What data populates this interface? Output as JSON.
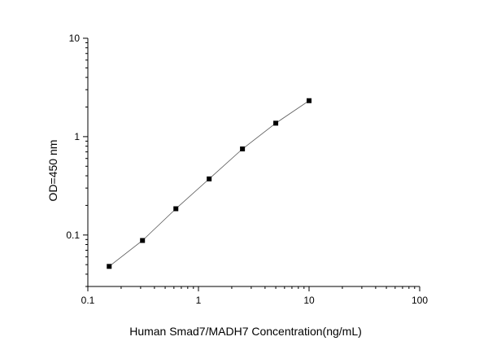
{
  "chart_data": {
    "type": "scatter",
    "title": "",
    "xlabel": "Human Smad7/MADH7 Concentration(ng/mL)",
    "ylabel": "OD=450 nm",
    "xscale": "log",
    "yscale": "log",
    "xlim": [
      0.1,
      100
    ],
    "ylim": [
      0.03,
      10
    ],
    "x_ticks": [
      0.1,
      1,
      10,
      100
    ],
    "x_tick_labels": [
      "0.1",
      "1",
      "10",
      "100"
    ],
    "y_ticks": [
      0.1,
      1,
      10
    ],
    "y_tick_labels": [
      "0.1",
      "1",
      "10"
    ],
    "grid": false,
    "series": [
      {
        "x": [
          0.156,
          0.312,
          0.625,
          1.25,
          2.5,
          5,
          10
        ],
        "y": [
          0.048,
          0.088,
          0.185,
          0.372,
          0.75,
          1.37,
          2.32
        ],
        "marker": "square",
        "line": "smooth fit",
        "color": "#000000",
        "line_color": "#555555"
      }
    ]
  }
}
